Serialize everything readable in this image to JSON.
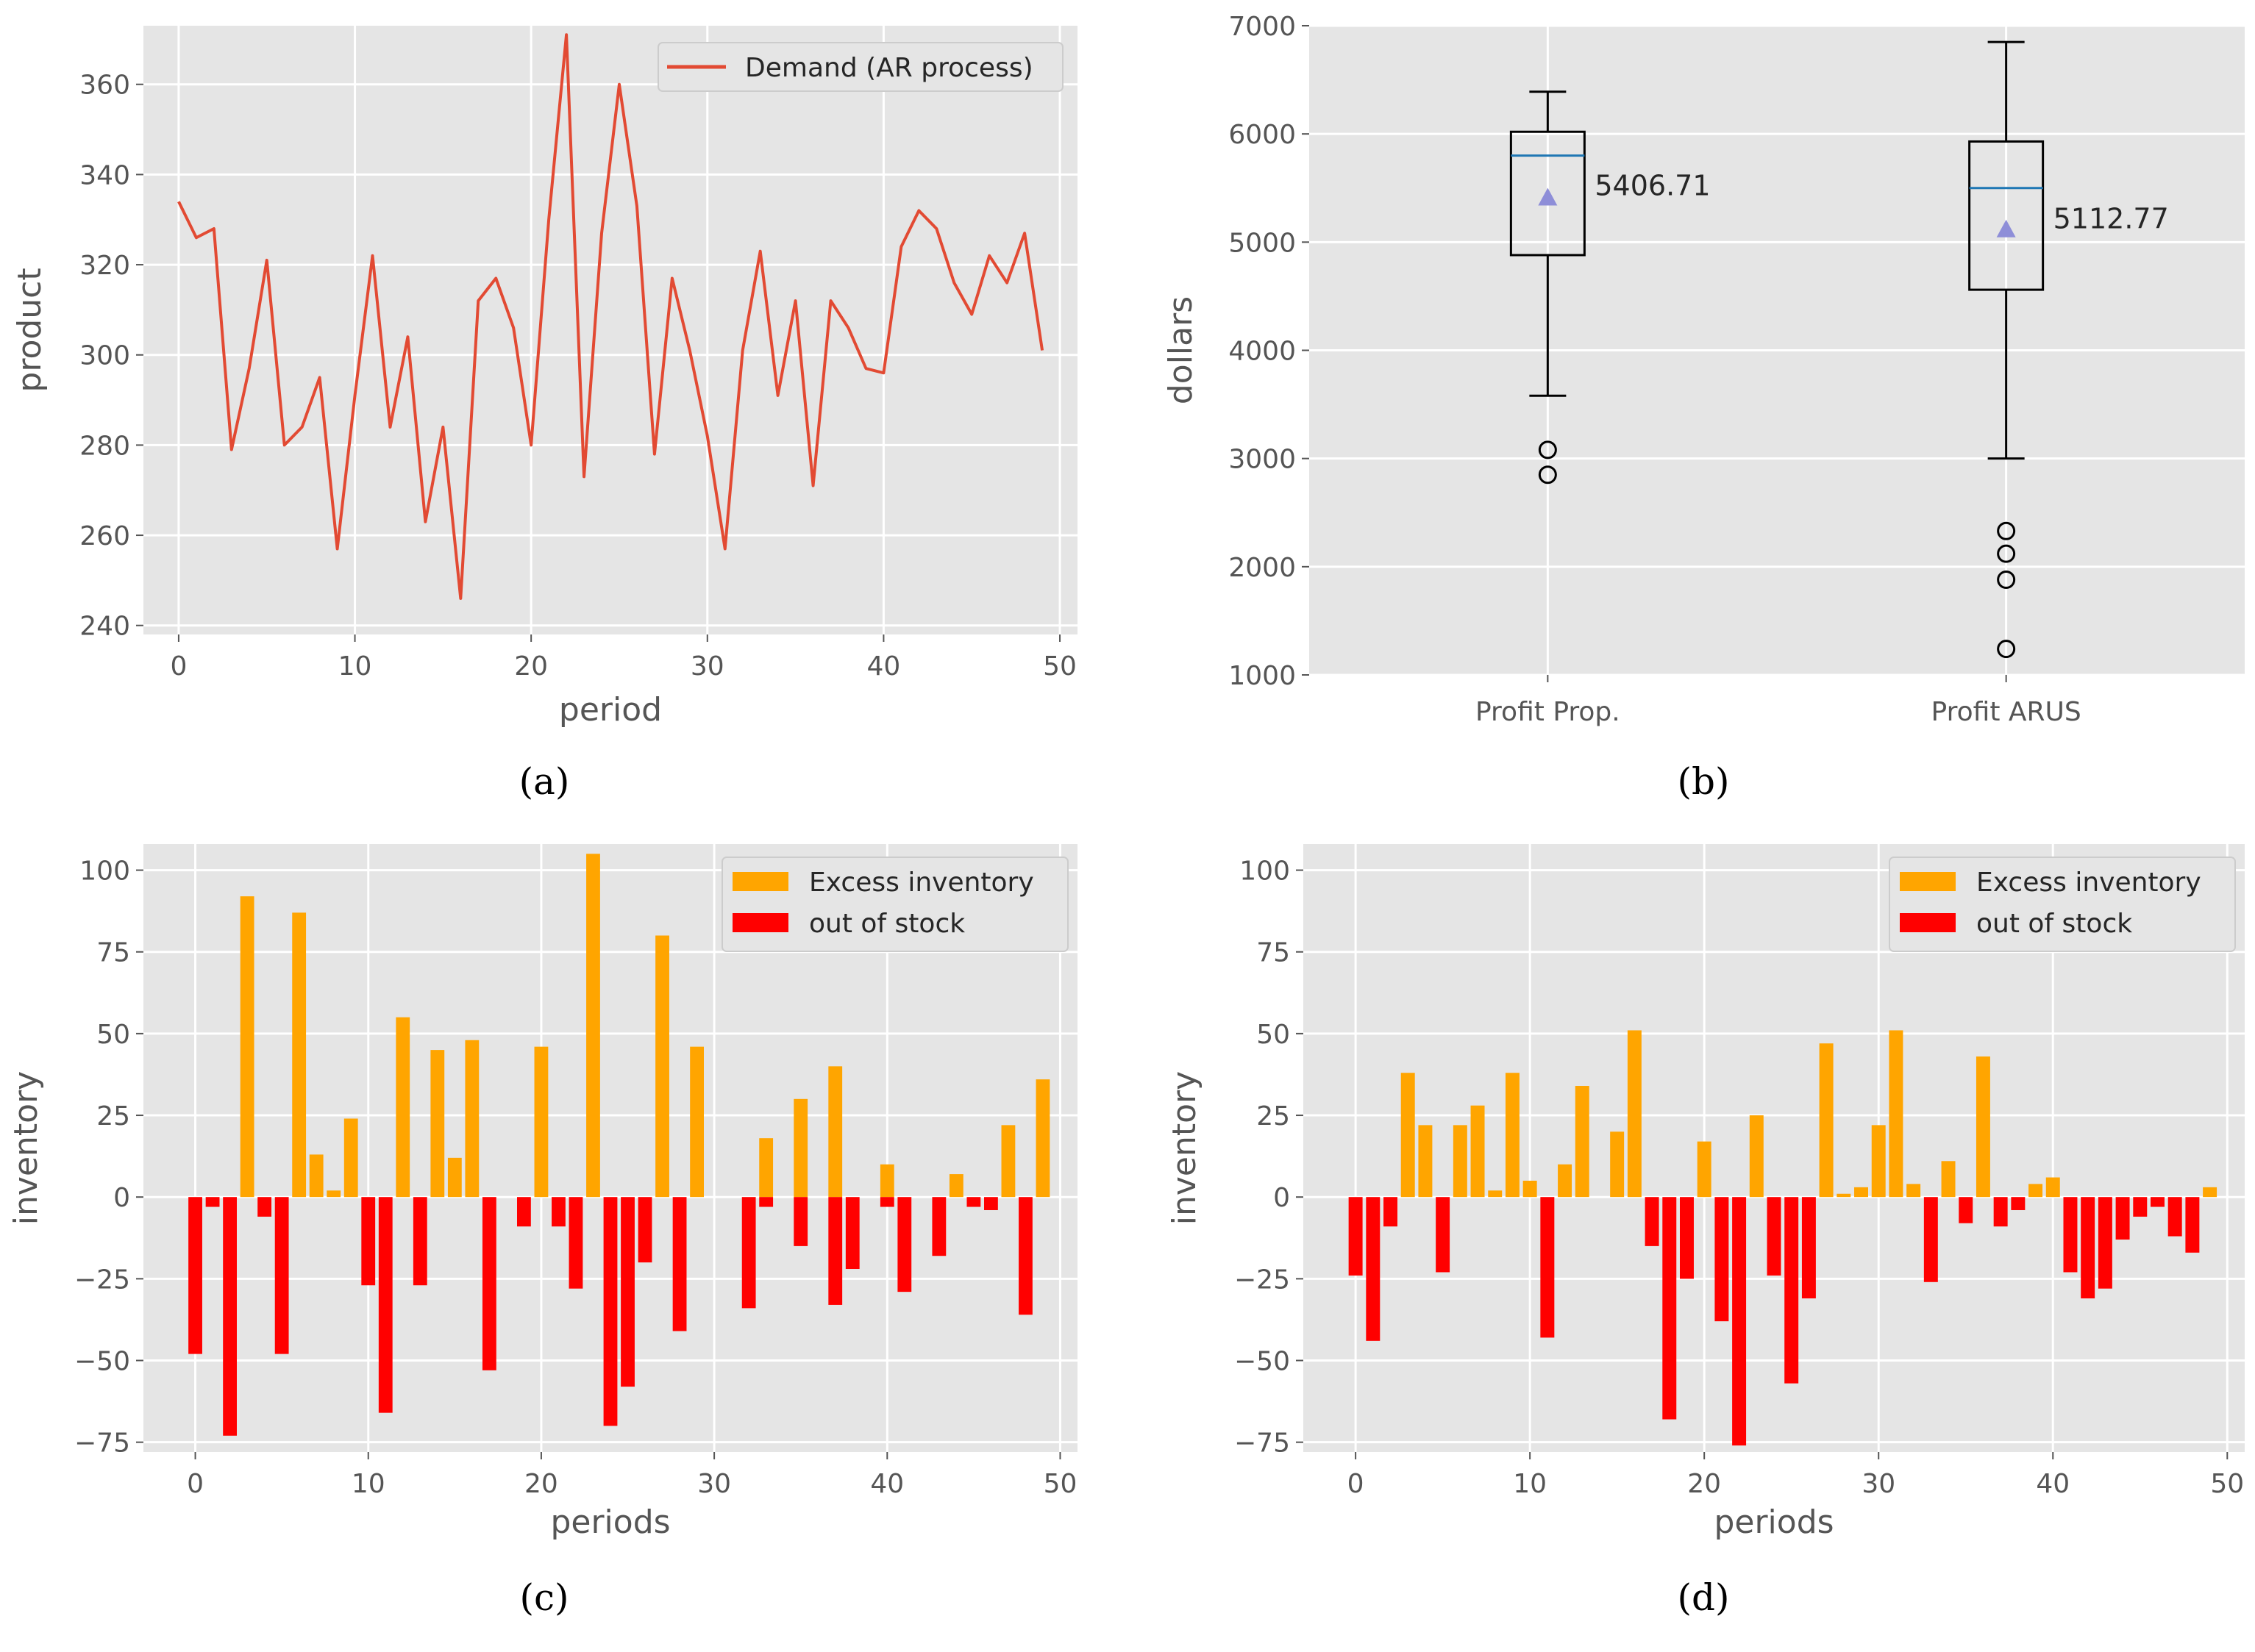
{
  "colors": {
    "panel_bg": "#e5e5e5",
    "grid": "#ffffff",
    "demand_line": "#e24a33",
    "excess": "#ffa500",
    "stockout": "#ff0000",
    "median": "#1f77b4",
    "mean_marker": "#8e8ed8"
  },
  "chart_data": [
    {
      "type": "line",
      "caption": "(a)",
      "xlabel": "period",
      "ylabel": "product",
      "xlim": [
        -2,
        51
      ],
      "ylim": [
        238,
        373
      ],
      "xticks": [
        0,
        10,
        20,
        30,
        40,
        50
      ],
      "yticks": [
        240,
        260,
        280,
        300,
        320,
        340,
        360
      ],
      "grid": true,
      "legend_position": "top-right",
      "series": [
        {
          "name": "Demand (AR process)",
          "x": [
            0,
            1,
            2,
            3,
            4,
            5,
            6,
            7,
            8,
            9,
            10,
            11,
            12,
            13,
            14,
            15,
            16,
            17,
            18,
            19,
            20,
            21,
            22,
            23,
            24,
            25,
            26,
            27,
            28,
            29,
            30,
            31,
            32,
            33,
            34,
            35,
            36,
            37,
            38,
            39,
            40,
            41,
            42,
            43,
            44,
            45,
            46,
            47,
            48,
            49
          ],
          "y": [
            334,
            326,
            328,
            279,
            297,
            321,
            280,
            284,
            295,
            257,
            291,
            322,
            284,
            304,
            263,
            284,
            246,
            312,
            317,
            306,
            280,
            330,
            371,
            273,
            327,
            360,
            333,
            278,
            317,
            301,
            282,
            257,
            301,
            323,
            291,
            312,
            271,
            312,
            306,
            297,
            296,
            324,
            332,
            328,
            316,
            309,
            322,
            316,
            327,
            301
          ]
        }
      ]
    },
    {
      "type": "box",
      "caption": "(b)",
      "xlabel": "",
      "ylabel": "dollars",
      "ylim": [
        1000,
        7000
      ],
      "yticks": [
        1000,
        2000,
        3000,
        4000,
        5000,
        6000,
        7000
      ],
      "grid": true,
      "boxes": [
        {
          "label": "Profit Prop.",
          "whisker_low": 3580,
          "q1": 4880,
          "median": 5800,
          "q3": 6020,
          "whisker_high": 6390,
          "mean": 5406.71,
          "mean_label": "5406.71",
          "outliers": [
            3080,
            2850
          ]
        },
        {
          "label": "Profit ARUS",
          "whisker_low": 3000,
          "q1": 4560,
          "median": 5500,
          "q3": 5930,
          "whisker_high": 6850,
          "mean": 5112.77,
          "mean_label": "5112.77",
          "outliers": [
            2330,
            2120,
            1880,
            1240
          ]
        }
      ]
    },
    {
      "type": "bar",
      "caption": "(c)",
      "xlabel": "periods",
      "ylabel": "inventory",
      "xlim": [
        -3,
        51
      ],
      "ylim": [
        -78,
        108
      ],
      "xticks": [
        0,
        10,
        20,
        30,
        40,
        50
      ],
      "yticks": [
        -75,
        -50,
        -25,
        0,
        25,
        50,
        75,
        100
      ],
      "grid": true,
      "legend_position": "top-right",
      "series": [
        {
          "name": "Excess inventory",
          "color": "#ffa500",
          "values": [
            0,
            0,
            0,
            92,
            0,
            0,
            87,
            13,
            2,
            24,
            0,
            0,
            55,
            0,
            45,
            12,
            48,
            0,
            0,
            0,
            46,
            0,
            0,
            105,
            0,
            0,
            0,
            80,
            0,
            46,
            0,
            0,
            0,
            18,
            0,
            30,
            0,
            40,
            0,
            0,
            10,
            0,
            0,
            0,
            7,
            0,
            0,
            22,
            0,
            36
          ]
        },
        {
          "name": "out of stock",
          "color": "#ff0000",
          "values": [
            -48,
            -3,
            -73,
            0,
            -6,
            -48,
            0,
            0,
            0,
            0,
            -27,
            -66,
            0,
            -27,
            0,
            0,
            0,
            -53,
            0,
            -9,
            0,
            -9,
            -28,
            0,
            -70,
            -58,
            -20,
            0,
            -41,
            0,
            0,
            0,
            -34,
            -3,
            0,
            -15,
            0,
            -33,
            -22,
            0,
            -3,
            -29,
            0,
            -18,
            0,
            -3,
            -4,
            0,
            -36,
            0
          ]
        }
      ]
    },
    {
      "type": "bar",
      "caption": "(d)",
      "xlabel": "periods",
      "ylabel": "inventory",
      "xlim": [
        -3,
        51
      ],
      "ylim": [
        -78,
        108
      ],
      "xticks": [
        0,
        10,
        20,
        30,
        40,
        50
      ],
      "yticks": [
        -75,
        -50,
        -25,
        0,
        25,
        50,
        75,
        100
      ],
      "grid": true,
      "legend_position": "top-right",
      "series": [
        {
          "name": "Excess inventory",
          "color": "#ffa500",
          "values": [
            0,
            0,
            0,
            38,
            22,
            0,
            22,
            28,
            2,
            38,
            5,
            0,
            10,
            34,
            0,
            20,
            51,
            0,
            0,
            0,
            17,
            0,
            0,
            25,
            0,
            0,
            0,
            47,
            1,
            3,
            22,
            51,
            4,
            0,
            11,
            0,
            43,
            0,
            0,
            4,
            6,
            0,
            0,
            0,
            0,
            0,
            0,
            0,
            0,
            3
          ]
        },
        {
          "name": "out of stock",
          "color": "#ff0000",
          "values": [
            -24,
            -44,
            -9,
            0,
            0,
            -23,
            0,
            0,
            0,
            0,
            0,
            -43,
            0,
            0,
            0,
            0,
            0,
            -15,
            -68,
            -25,
            0,
            -38,
            -76,
            0,
            -24,
            -57,
            -31,
            0,
            0,
            0,
            0,
            0,
            0,
            -26,
            0,
            -8,
            0,
            -9,
            -4,
            0,
            0,
            -23,
            -31,
            -28,
            -13,
            -6,
            -3,
            -12,
            -17,
            0
          ]
        }
      ]
    }
  ]
}
